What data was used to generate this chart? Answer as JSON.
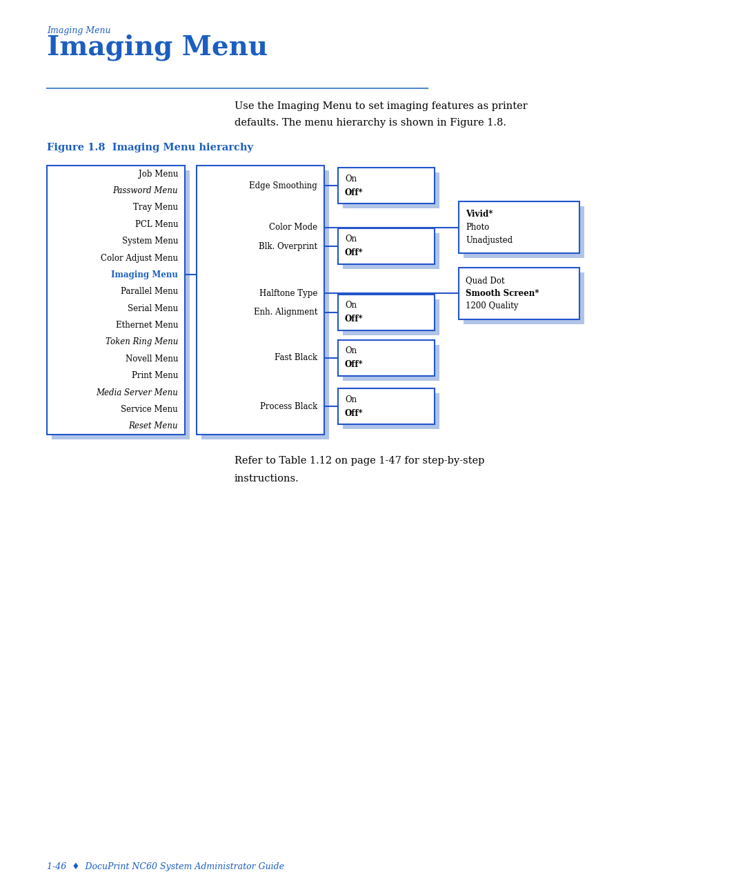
{
  "page_bg": "#ffffff",
  "blue_color": "#1B5EBF",
  "text_color": "#000000",
  "title_rule_color": "#5588CC",
  "shadow_color": "#B0C4E8",
  "border_color": "#2255CC",
  "header_italic": "Imaging Menu",
  "title": "Imaging Menu",
  "body_text_line1": "Use the Imaging Menu to set imaging features as printer",
  "body_text_line2": "defaults. The menu hierarchy is shown in Figure 1.8.",
  "figure_label": "Figure 1.8  Imaging Menu hierarchy",
  "refer_text_line1": "Refer to Table 1.12 on page 1-47 for step-by-step",
  "refer_text_line2": "instructions.",
  "footer_text": "1-46  ♦  DocuPrint NC60 System Administrator Guide",
  "col1_items": [
    {
      "text": "Job Menu",
      "italic": false,
      "highlight": false
    },
    {
      "text": "Password Menu",
      "italic": true,
      "highlight": false
    },
    {
      "text": "Tray Menu",
      "italic": false,
      "highlight": false
    },
    {
      "text": "PCL Menu",
      "italic": false,
      "highlight": false
    },
    {
      "text": "System Menu",
      "italic": false,
      "highlight": false
    },
    {
      "text": "Color Adjust Menu",
      "italic": false,
      "highlight": false
    },
    {
      "text": "Imaging Menu",
      "italic": false,
      "highlight": true
    },
    {
      "text": "Parallel Menu",
      "italic": false,
      "highlight": false
    },
    {
      "text": "Serial Menu",
      "italic": false,
      "highlight": false
    },
    {
      "text": "Ethernet Menu",
      "italic": false,
      "highlight": false
    },
    {
      "text": "Token Ring Menu",
      "italic": true,
      "highlight": false
    },
    {
      "text": "Novell Menu",
      "italic": false,
      "highlight": false
    },
    {
      "text": "Print Menu",
      "italic": false,
      "highlight": false
    },
    {
      "text": "Media Server Menu",
      "italic": true,
      "highlight": false
    },
    {
      "text": "Service Menu",
      "italic": false,
      "highlight": false
    },
    {
      "text": "Reset Menu",
      "italic": true,
      "highlight": false
    }
  ],
  "col2_labels": [
    "Edge Smoothing",
    "Color Mode",
    "Blk. Overprint",
    "Halftone Type",
    "Enh. Alignment",
    "Fast Black",
    "Process Black"
  ],
  "col2_label_italics": [
    false,
    false,
    false,
    false,
    false,
    false,
    false
  ],
  "col3_boxes": [
    {
      "lines": [
        "On",
        "Off*"
      ],
      "bold_idx": 1
    },
    {
      "lines": [
        "On",
        "Off*"
      ],
      "bold_idx": 1
    },
    {
      "lines": [
        "On",
        "Off*"
      ],
      "bold_idx": 1
    },
    {
      "lines": [
        "On",
        "Off*"
      ],
      "bold_idx": 1
    },
    {
      "lines": [
        "On",
        "Off*"
      ],
      "bold_idx": 1
    }
  ],
  "col4_boxes": [
    {
      "lines": [
        "Vivid*",
        "Photo",
        "Unadjusted"
      ],
      "bold_idx": 0
    },
    {
      "lines": [
        "Quad Dot",
        "Smooth Screen*",
        "1200 Quality"
      ],
      "bold_idx": 1
    }
  ]
}
